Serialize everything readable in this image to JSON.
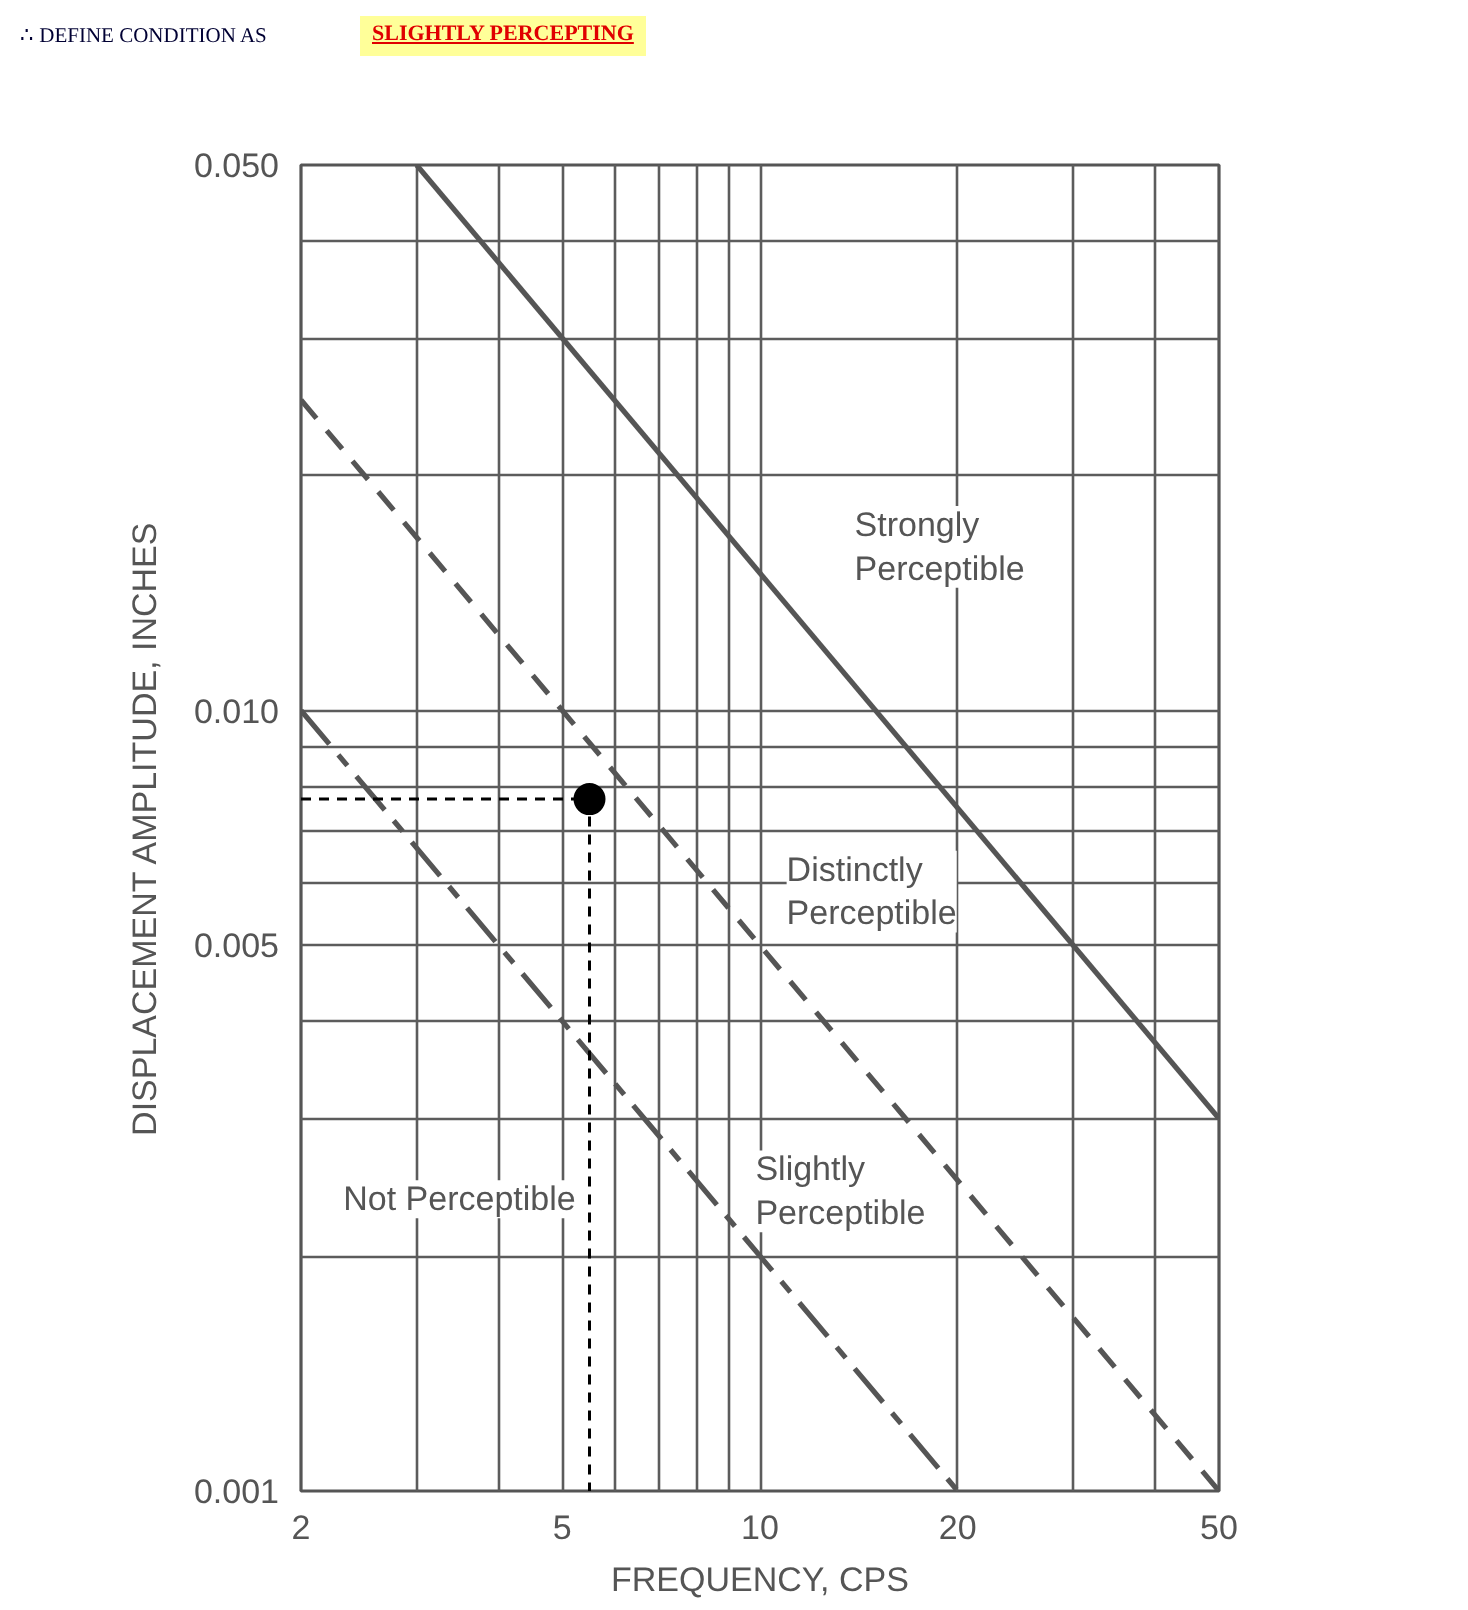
{
  "chart_data": {
    "type": "line",
    "title": "∴ DEFINE CONDITION AS",
    "subtitle": "SLIGHTLY PERCEPTING",
    "xlabel": "FREQUENCY, CPS",
    "ylabel": "DISPLACEMENT AMPLITUDE, INCHES",
    "log": "xy",
    "xlim": [
      2,
      50
    ],
    "ylim": [
      0.001,
      0.05
    ],
    "xticks": [
      2,
      {
        "value": 3,
        "label": null
      },
      {
        "value": 4,
        "label": null
      },
      5,
      {
        "value": 6,
        "label": null
      },
      {
        "value": 7,
        "label": null
      },
      {
        "value": 8,
        "label": null
      },
      {
        "value": 9,
        "label": null
      },
      10,
      20,
      {
        "value": 30,
        "label": null
      },
      {
        "value": 40,
        "label": null
      },
      50
    ],
    "yticks": [
      0.001,
      {
        "value": 0.002,
        "label": null
      },
      {
        "value": 0.003,
        "label": null
      },
      {
        "value": 0.004,
        "label": null
      },
      0.005,
      {
        "value": 0.006,
        "label": null
      },
      {
        "value": 0.007,
        "label": null
      },
      {
        "value": 0.008,
        "label": null
      },
      {
        "value": 0.009,
        "label": null
      },
      {
        "value": 0.01,
        "label": "0.010"
      },
      {
        "value": 0.02,
        "label": null
      },
      {
        "value": 0.03,
        "label": null
      },
      {
        "value": 0.04,
        "label": null
      },
      {
        "value": 0.05,
        "label": "0.050"
      }
    ],
    "grid": true,
    "series": [
      {
        "color": "#555555",
        "x": [
          3,
          50
        ],
        "values": [
          0.05,
          0.003
        ],
        "line_style": "solid"
      },
      {
        "color": "#555555",
        "x": [
          2,
          50
        ],
        "values": [
          0.025,
          0.001
        ],
        "line_style": "dashed"
      },
      {
        "color": "#555555",
        "x": [
          2,
          20
        ],
        "values": [
          0.01,
          0.001
        ],
        "line_style": "dashdot"
      },
      {
        "type": "step",
        "color": "#000000",
        "x": [
          2,
          5.5
        ],
        "values": [
          0.0077,
          0.001
        ],
        "line_style": "dashed"
      },
      {
        "type": "scatter",
        "color": "#000000",
        "x": [
          5.5
        ],
        "values": [
          0.0077
        ],
        "marker": "circle"
      }
    ],
    "annotations": [
      "Strongly\nPerceptible",
      "Distinctly\nPerceptible",
      "Slightly\nPerceptible",
      "Not Perceptible"
    ]
  }
}
